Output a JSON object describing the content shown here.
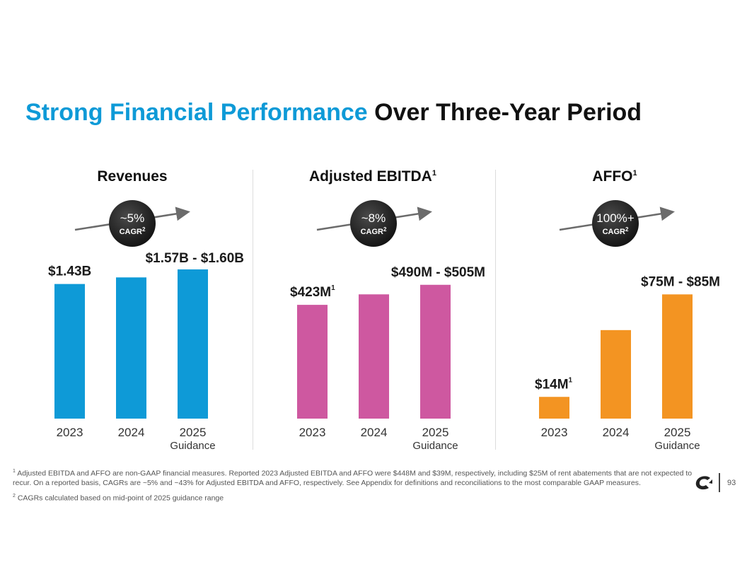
{
  "title": {
    "accent": "Strong Financial Performance",
    "rest": "Over Three-Year Period"
  },
  "colors": {
    "title_accent": "#0E9AD7",
    "revenues": "#0E9AD7",
    "ebitda": "#CE58A0",
    "affo": "#F39422",
    "badge": "#2b2b2b",
    "arrow": "#6b6b6b"
  },
  "chart_data": [
    {
      "type": "bar",
      "title": "Revenues",
      "title_sup": "",
      "categories": [
        "2023",
        "2024",
        "2025"
      ],
      "category_sublabels": [
        "",
        "",
        "Guidance"
      ],
      "values": [
        1.43,
        1.5,
        1.585
      ],
      "units": "$B",
      "ylim": [
        0,
        1.6
      ],
      "data_labels": [
        "$1.43B",
        "",
        "$1.57B - $1.60B"
      ],
      "data_label_sups": [
        "",
        "",
        ""
      ],
      "cagr": {
        "value": "~5%",
        "label": "CAGR",
        "sup": "2"
      }
    },
    {
      "type": "bar",
      "title": "Adjusted EBITDA",
      "title_sup": "1",
      "categories": [
        "2023",
        "2024",
        "2025"
      ],
      "category_sublabels": [
        "",
        "",
        "Guidance"
      ],
      "values": [
        423,
        462,
        497.5
      ],
      "units": "$M",
      "ylim": [
        0,
        560
      ],
      "data_labels": [
        "$423M",
        "",
        "$490M - $505M"
      ],
      "data_label_sups": [
        "1",
        "",
        ""
      ],
      "cagr": {
        "value": "~8%",
        "label": "CAGR",
        "sup": "2"
      }
    },
    {
      "type": "bar",
      "title": "AFFO",
      "title_sup": "1",
      "categories": [
        "2023",
        "2024",
        "2025"
      ],
      "category_sublabels": [
        "",
        "",
        "Guidance"
      ],
      "values": [
        14,
        57,
        80
      ],
      "units": "$M",
      "ylim": [
        0,
        97
      ],
      "data_labels": [
        "$14M",
        "",
        "$75M - $85M"
      ],
      "data_label_sups": [
        "1",
        "",
        ""
      ],
      "cagr": {
        "value": "100%+",
        "label": "CAGR",
        "sup": "2"
      }
    }
  ],
  "footnotes": {
    "note1_sup": "1",
    "note1": "Adjusted EBITDA and AFFO are non-GAAP financial measures. Reported 2023 Adjusted EBITDA and AFFO were $448M and $39M, respectively, including $25M of rent abatements that are not expected to recur. On a reported basis, CAGRs are ~5% and ~43% for Adjusted EBITDA and AFFO, respectively. See Appendix for definitions and reconciliations to the most comparable GAAP measures.",
    "note2_sup": "2",
    "note2": "CAGRs calculated based on mid-point of 2025 guidance range"
  },
  "page_number": "93"
}
